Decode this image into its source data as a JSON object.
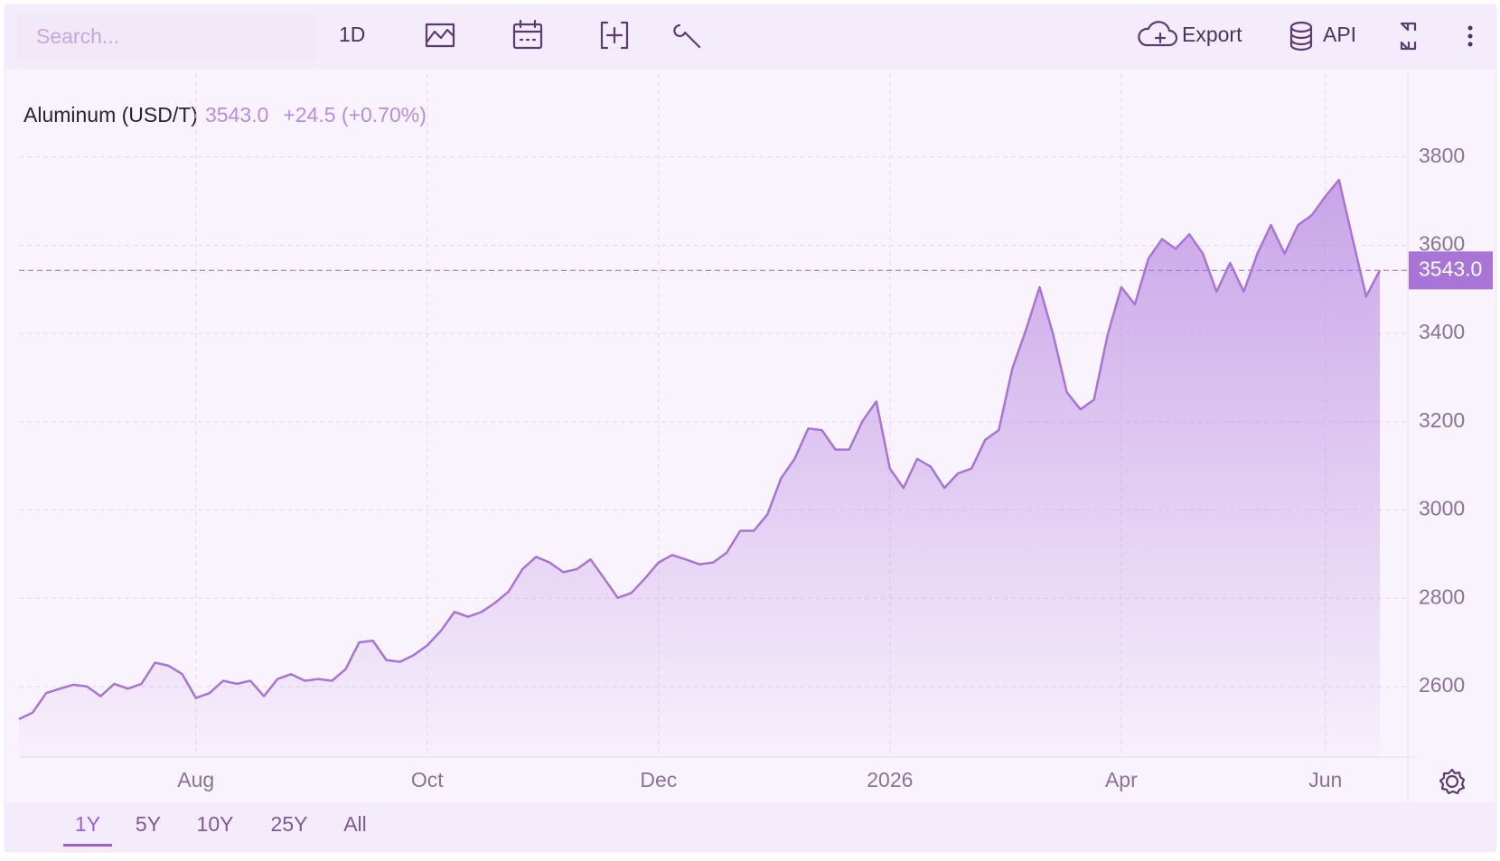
{
  "toolbar": {
    "search_placeholder": "Search...",
    "interval": "1D",
    "export": "Export",
    "api": "API"
  },
  "range_selector": {
    "options": [
      "1Y",
      "5Y",
      "10Y",
      "25Y",
      "All"
    ],
    "active": 0
  },
  "chart_data": {
    "type": "area",
    "title": "Aluminum (USD/T)",
    "price_label": "3543.0",
    "change_label": "+24.5 (+0.70%)",
    "categories": [
      null,
      null,
      null,
      null,
      null,
      null,
      null,
      null,
      null,
      null,
      null,
      null,
      null,
      "Aug",
      null,
      null,
      null,
      null,
      null,
      null,
      null,
      null,
      null,
      null,
      null,
      null,
      null,
      null,
      null,
      null,
      "Oct",
      null,
      null,
      null,
      null,
      null,
      null,
      null,
      null,
      null,
      null,
      null,
      null,
      null,
      null,
      null,
      null,
      "Dec",
      null,
      null,
      null,
      null,
      null,
      null,
      null,
      null,
      null,
      null,
      null,
      null,
      null,
      null,
      null,
      null,
      "2026",
      null,
      null,
      null,
      null,
      null,
      null,
      null,
      null,
      null,
      null,
      null,
      null,
      null,
      null,
      null,
      null,
      "Apr",
      null,
      null,
      null,
      null,
      null,
      null,
      null,
      null,
      null,
      null,
      null,
      null,
      null,
      null,
      "Jun",
      null,
      null,
      null,
      null
    ],
    "series": [
      {
        "name": "Aluminum",
        "color": "#a874d6",
        "values": [
          2526,
          2541,
          2585,
          2595,
          2604,
          2600,
          2578,
          2606,
          2595,
          2606,
          2654,
          2647,
          2628,
          2574,
          2585,
          2613,
          2606,
          2613,
          2578,
          2617,
          2628,
          2613,
          2617,
          2613,
          2639,
          2700,
          2704,
          2660,
          2656,
          2671,
          2693,
          2726,
          2769,
          2758,
          2769,
          2790,
          2816,
          2866,
          2894,
          2881,
          2859,
          2866,
          2888,
          2845,
          2801,
          2812,
          2845,
          2881,
          2898,
          2888,
          2877,
          2881,
          2903,
          2953,
          2953,
          2990,
          3072,
          3116,
          3185,
          3181,
          3137,
          3137,
          3202,
          3246,
          3094,
          3050,
          3116,
          3098,
          3050,
          3083,
          3094,
          3159,
          3181,
          3321,
          3408,
          3505,
          3397,
          3267,
          3228,
          3250,
          3397,
          3505,
          3466,
          3570,
          3614,
          3592,
          3625,
          3581,
          3495,
          3560,
          3495,
          3581,
          3646,
          3581,
          3646,
          3668,
          3711,
          3748,
          3614,
          3484,
          3543
        ]
      }
    ],
    "ylim": [
      2440,
      3990
    ],
    "yticks": [
      2600,
      2800,
      3000,
      3200,
      3400,
      3600,
      3800
    ],
    "grid": true
  }
}
